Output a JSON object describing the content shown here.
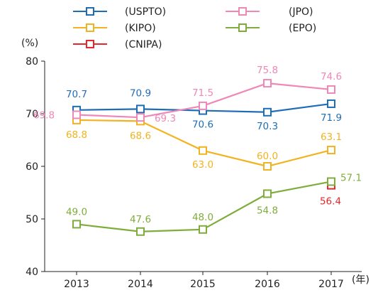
{
  "chart_data": {
    "type": "line",
    "title": "",
    "xlabel": "",
    "ylabel": "",
    "y_unit": "(%)",
    "x_unit": "(年)",
    "categories": [
      "2013",
      "2014",
      "2015",
      "2016",
      "2017"
    ],
    "ylim": [
      40,
      80
    ],
    "yticks": [
      "40",
      "50",
      "60",
      "70",
      "80"
    ],
    "grid": false,
    "legend_position": "top",
    "series": [
      {
        "name": "(USPTO)",
        "color": "#1f6eb5",
        "values": [
          70.7,
          70.9,
          70.6,
          70.3,
          71.9
        ],
        "labels": [
          "70.7",
          "70.9",
          "70.6",
          "70.3",
          "71.9"
        ]
      },
      {
        "name": "(KIPO)",
        "color": "#f2b320",
        "values": [
          68.8,
          68.6,
          63.0,
          60.0,
          63.1
        ],
        "labels": [
          "68.8",
          "68.6",
          "63.0",
          "60.0",
          "63.1"
        ]
      },
      {
        "name": "(CNIPA)",
        "color": "#e8262b",
        "values": [
          null,
          null,
          null,
          null,
          56.4
        ],
        "labels": [
          "",
          "",
          "",
          "",
          "56.4"
        ]
      },
      {
        "name": "(JPO)",
        "color": "#ef87b7",
        "values": [
          69.8,
          69.3,
          71.5,
          75.8,
          74.6
        ],
        "labels": [
          "69.8",
          "69.3",
          "71.5",
          "75.8",
          "74.6"
        ]
      },
      {
        "name": "(EPO)",
        "color": "#7fad3c",
        "values": [
          49.0,
          47.6,
          48.0,
          54.8,
          57.1
        ],
        "labels": [
          "49.0",
          "47.6",
          "48.0",
          "54.8",
          "57.1"
        ]
      }
    ]
  }
}
